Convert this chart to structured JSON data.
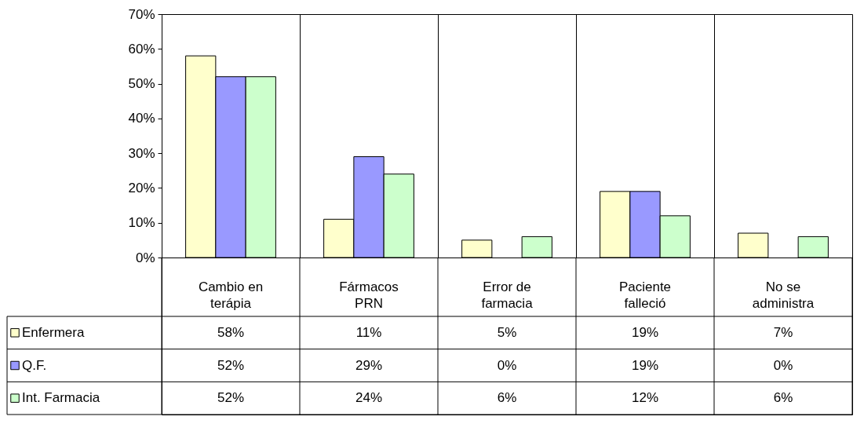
{
  "chart_data": {
    "type": "bar",
    "categories": [
      "Cambio en terápia",
      "Fármacos PRN",
      "Error de farmacia",
      "Paciente falleció",
      "No se administra"
    ],
    "series": [
      {
        "name": "Enfermera",
        "color": "#ffffcc",
        "values": [
          58,
          11,
          5,
          19,
          7
        ],
        "value_labels": [
          "58%",
          "11%",
          "5%",
          "19%",
          "7%"
        ]
      },
      {
        "name": "Q.F.",
        "color": "#9999ff",
        "values": [
          52,
          29,
          0,
          19,
          0
        ],
        "value_labels": [
          "52%",
          "29%",
          "0%",
          "19%",
          "0%"
        ]
      },
      {
        "name": "Int. Farmacia",
        "color": "#ccffcc",
        "values": [
          52,
          24,
          6,
          12,
          6
        ],
        "value_labels": [
          "52%",
          "24%",
          "6%",
          "12%",
          "6%"
        ]
      }
    ],
    "ylim": [
      0,
      70
    ],
    "yticks": [
      {
        "value": 0,
        "label": "0%"
      },
      {
        "value": 10,
        "label": "10%"
      },
      {
        "value": 20,
        "label": "20%"
      },
      {
        "value": 30,
        "label": "30%"
      },
      {
        "value": 40,
        "label": "40%"
      },
      {
        "value": 50,
        "label": "50%"
      },
      {
        "value": 60,
        "label": "60%"
      },
      {
        "value": 70,
        "label": "70%"
      }
    ],
    "grid": "x",
    "legend": "bottom left"
  }
}
